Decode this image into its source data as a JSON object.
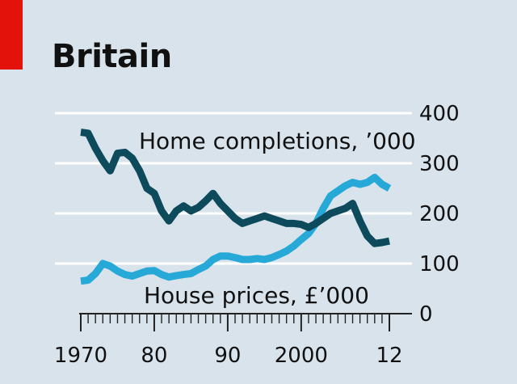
{
  "title": "Britain",
  "colors": {
    "background": "#d9e3ec",
    "gridline": "#ffffff",
    "completions": "#0c4a5c",
    "house_prices": "#27a9d8",
    "tag": "#e3120b"
  },
  "chart_data": {
    "type": "line",
    "title": "Britain",
    "xlabel": "",
    "ylabel": "",
    "xlim": [
      1970,
      2012
    ],
    "ylim": [
      0,
      400
    ],
    "y_axis_side": "right",
    "x_ticks": [
      1970,
      1980,
      1990,
      2000,
      2012
    ],
    "x_tick_labels": [
      "1970",
      "80",
      "90",
      "2000",
      "12"
    ],
    "y_ticks": [
      0,
      100,
      200,
      300,
      400
    ],
    "y_tick_labels": [
      "0",
      "100",
      "200",
      "300",
      "400"
    ],
    "grid": true,
    "legend": "inline labels",
    "series": [
      {
        "name": "Home completions, ’000",
        "color": "#0c4a5c",
        "x": [
          1970,
          1971,
          1972,
          1973,
          1974,
          1975,
          1976,
          1977,
          1978,
          1979,
          1980,
          1981,
          1982,
          1983,
          1984,
          1985,
          1986,
          1987,
          1988,
          1989,
          1990,
          1991,
          1992,
          1993,
          1994,
          1995,
          1996,
          1997,
          1998,
          1999,
          2000,
          2001,
          2002,
          2003,
          2004,
          2005,
          2006,
          2007,
          2008,
          2009,
          2010,
          2011,
          2012
        ],
        "y": [
          362,
          360,
          330,
          305,
          285,
          320,
          322,
          310,
          285,
          250,
          240,
          205,
          185,
          205,
          215,
          205,
          212,
          225,
          240,
          220,
          205,
          190,
          180,
          185,
          190,
          195,
          190,
          185,
          180,
          180,
          178,
          172,
          180,
          190,
          200,
          205,
          210,
          220,
          185,
          155,
          140,
          142,
          145
        ]
      },
      {
        "name": "House prices, £’000",
        "color": "#27a9d8",
        "x": [
          1970,
          1971,
          1972,
          1973,
          1974,
          1975,
          1976,
          1977,
          1978,
          1979,
          1980,
          1981,
          1982,
          1983,
          1984,
          1985,
          1986,
          1987,
          1988,
          1989,
          1990,
          1991,
          1992,
          1993,
          1994,
          1995,
          1996,
          1997,
          1998,
          1999,
          2000,
          2001,
          2002,
          2003,
          2004,
          2005,
          2006,
          2007,
          2008,
          2009,
          2010,
          2011,
          2012
        ],
        "y": [
          65,
          67,
          80,
          100,
          95,
          85,
          78,
          75,
          80,
          85,
          86,
          78,
          73,
          76,
          78,
          80,
          88,
          95,
          108,
          115,
          115,
          112,
          108,
          108,
          110,
          108,
          112,
          118,
          125,
          135,
          148,
          160,
          180,
          210,
          235,
          245,
          255,
          262,
          258,
          262,
          272,
          258,
          250
        ]
      }
    ]
  }
}
